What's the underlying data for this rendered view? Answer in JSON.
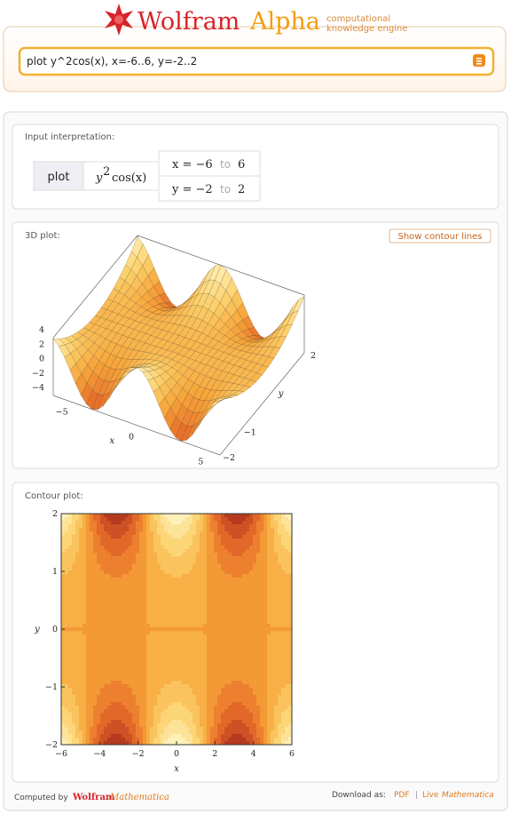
{
  "header": {
    "logo_wolfram": "Wolfram",
    "logo_alpha": "Alpha",
    "tagline_1": "computational",
    "tagline_2": "knowledge engine",
    "query": "plot y^2cos(x), x=-6..6, y=-2..2"
  },
  "input_interpretation": {
    "label": "Input interpretation:",
    "command": "plot",
    "function_base": "y",
    "function_power": "2",
    "function_rest": "cos(x)",
    "x_range": {
      "start": "x = −6",
      "to": "to",
      "end": "6"
    },
    "y_range": {
      "start": "y = −2",
      "to": "to",
      "end": "2"
    }
  },
  "plot_3d": {
    "label": "3D plot:",
    "button": "Show contour lines",
    "z_ticks": [
      4,
      2,
      0,
      {
        "value": -2,
        "label": "−2"
      },
      {
        "value": -4,
        "label": "−4"
      }
    ],
    "x_ticks": [
      {
        "value": -5,
        "label": "−5"
      },
      0,
      5
    ],
    "x_label": "x",
    "y_ticks": [
      2,
      {
        "value": -1,
        "label": "−1"
      },
      {
        "value": -2,
        "label": "−2"
      }
    ],
    "y_label": "y"
  },
  "contour_plot": {
    "label": "Contour plot:",
    "xlim": [
      -6,
      6
    ],
    "ylim": [
      -2,
      2
    ],
    "xticks": [
      {
        "value": -6,
        "label": "−6"
      },
      {
        "value": -4,
        "label": "−4"
      },
      {
        "value": -2,
        "label": "−2"
      },
      0,
      2,
      4,
      6
    ],
    "yticks": [
      {
        "value": -2,
        "label": "−2"
      },
      {
        "value": -1,
        "label": "−1"
      },
      0,
      1,
      2
    ],
    "x_label": "x",
    "y_label": "y"
  },
  "footer": {
    "computed_by": "Computed by",
    "brand_wolfram": "Wolfram",
    "brand_mathematica": "Mathematica",
    "download_as": "Download as:",
    "pdf": "PDF",
    "separator": "|",
    "live": "Live",
    "live_mathematica": "Mathematica"
  }
}
